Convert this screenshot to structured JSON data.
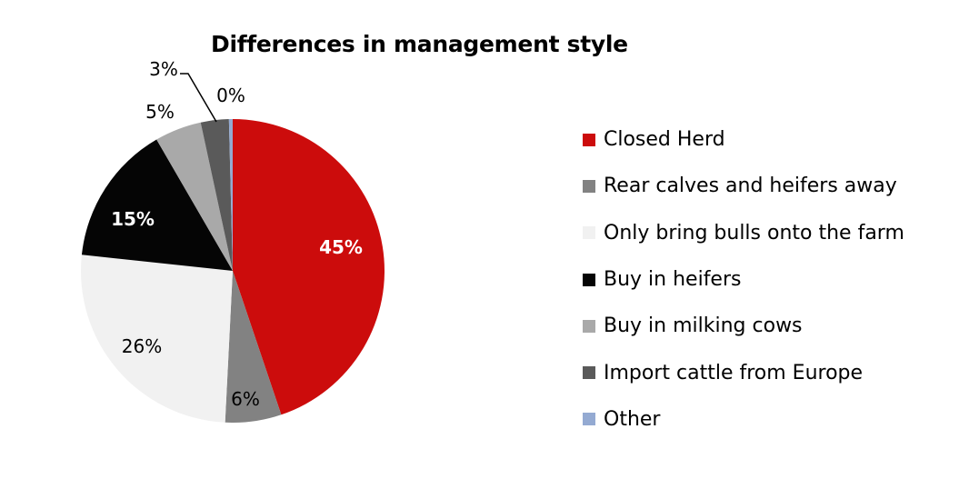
{
  "chart_data": {
    "type": "pie",
    "title": "Differences in management style",
    "start_angle_deg": 0,
    "direction": "clockwise",
    "categories": [
      "Closed Herd",
      "Rear calves and heifers away",
      "Only bring bulls onto the farm",
      "Buy in heifers",
      "Buy in milking cows",
      "Import cattle from Europe",
      "Other"
    ],
    "values": [
      45,
      6,
      26,
      15,
      5,
      3,
      0
    ],
    "labels": [
      "45%",
      "6%",
      "26%",
      "15%",
      "5%",
      "3%",
      "0%"
    ],
    "colors": [
      "#cc0c0c",
      "#828282",
      "#f1f1f1",
      "#050505",
      "#a9a9a9",
      "#5a5a5a",
      "#94aad2"
    ],
    "label_colors": [
      "#ffffff",
      "#000000",
      "#000000",
      "#ffffff",
      "#000000",
      "#000000",
      "#000000"
    ],
    "legend_position": "right"
  }
}
